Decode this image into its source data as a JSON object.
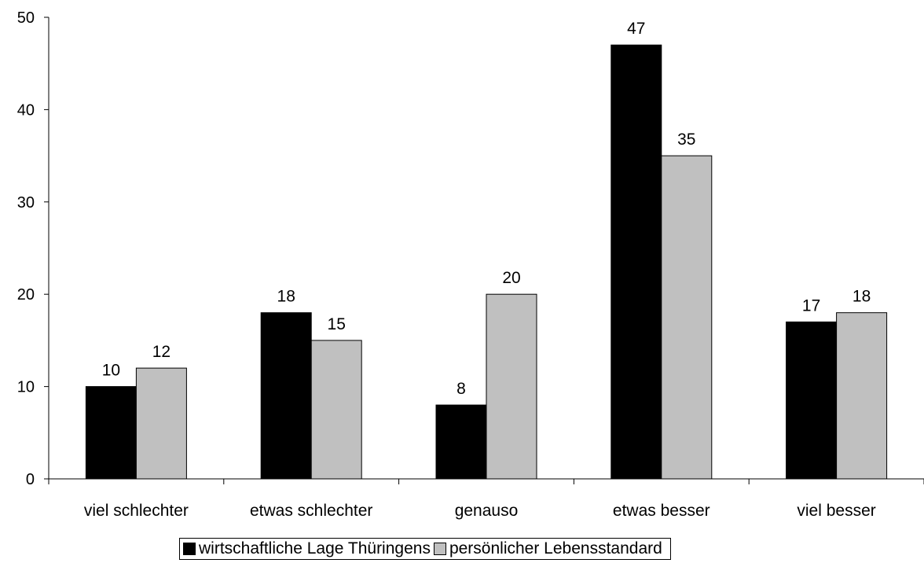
{
  "chart_data": {
    "type": "bar",
    "categories": [
      "viel schlechter",
      "etwas schlechter",
      "genauso",
      "etwas besser",
      "viel besser"
    ],
    "series": [
      {
        "name": "wirtschaftliche Lage Thüringens",
        "values": [
          10,
          18,
          8,
          47,
          17
        ],
        "color": "#000000"
      },
      {
        "name": "persönlicher Lebensstandard",
        "values": [
          12,
          15,
          20,
          35,
          18
        ],
        "color": "#c0c0c0"
      }
    ],
    "ylim": [
      0,
      50
    ],
    "yticks": [
      "0",
      "10",
      "20",
      "30",
      "40",
      "50"
    ],
    "grid": false,
    "legend_position": "bottom"
  }
}
